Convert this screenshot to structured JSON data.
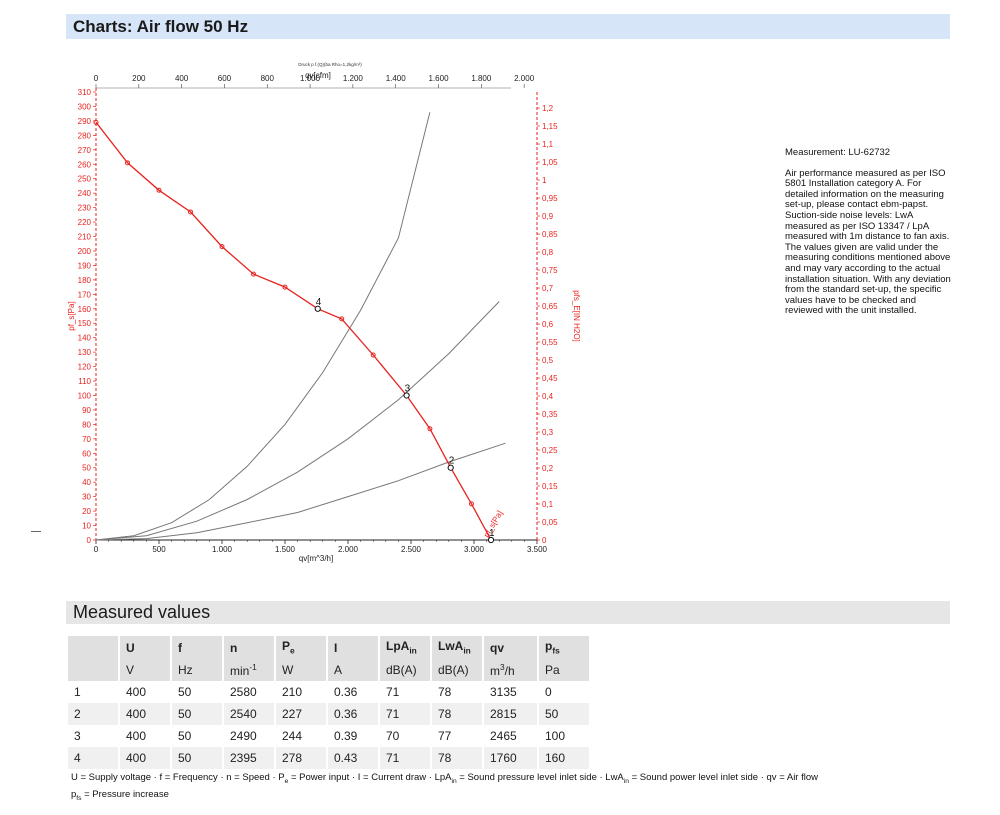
{
  "header": {
    "title": "Charts: Air flow 50 Hz"
  },
  "chart_data": {
    "type": "line",
    "subtitle": "Druck p f.(Q)(ba Rho=1,2kg/m³)",
    "xlabel_bottom": "qv[m^3/h]",
    "xlabel_top": "qv[cfm]",
    "ylabel_left": "pf_s[Pa]",
    "ylabel_right": "pfs_E[IN H2O]",
    "xlim": [
      0,
      3500
    ],
    "ylim": [
      0,
      310
    ],
    "x_ticks": [
      "0",
      "500",
      "1.000",
      "1.500",
      "2.000",
      "2.500",
      "3.000",
      "3.500"
    ],
    "x_top_ticks": [
      "0",
      "200",
      "400",
      "600",
      "800",
      "1.000",
      "1.200",
      "1.400",
      "1.600",
      "1.800",
      "2.000"
    ],
    "y_ticks": [
      "0",
      "10",
      "20",
      "30",
      "40",
      "50",
      "60",
      "70",
      "80",
      "90",
      "100",
      "110",
      "120",
      "130",
      "140",
      "150",
      "160",
      "170",
      "180",
      "190",
      "200",
      "210",
      "220",
      "230",
      "240",
      "250",
      "260",
      "270",
      "280",
      "290",
      "300",
      "310"
    ],
    "y_right_ticks": [
      "0",
      "0,05",
      "0,1",
      "0,15",
      "0,2",
      "0,25",
      "0,3",
      "0,35",
      "0,4",
      "0,45",
      "0,5",
      "0,55",
      "0,6",
      "0,65",
      "0,7",
      "0,75",
      "0,8",
      "0,85",
      "0,9",
      "0,95",
      "1",
      "1,05",
      "1,1",
      "1,15",
      "1,2"
    ],
    "series": [
      {
        "name": "pf_s[Pa]",
        "color": "#e8231f",
        "x": [
          0,
          250,
          500,
          750,
          1000,
          1250,
          1500,
          1760,
          1950,
          2200,
          2465,
          2650,
          2815,
          2980,
          3135
        ],
        "y": [
          289,
          261,
          242,
          227,
          203,
          184,
          175,
          160,
          153,
          128,
          100,
          77,
          50,
          25,
          0
        ]
      }
    ],
    "system_curves": [
      {
        "x": [
          0,
          400,
          800,
          1200,
          1600,
          2000,
          2400,
          2800,
          3200
        ],
        "y": [
          0,
          3,
          13,
          28,
          47,
          70,
          97,
          129,
          165
        ]
      },
      {
        "x": [
          0,
          400,
          800,
          1200,
          1600,
          2000,
          2400,
          2800,
          3250
        ],
        "y": [
          0,
          1,
          5,
          12,
          19,
          30,
          41,
          54,
          67
        ]
      },
      {
        "x": [
          0,
          300,
          600,
          900,
          1200,
          1500,
          1800,
          2100,
          2400,
          2650
        ],
        "y": [
          0,
          3,
          12,
          28,
          51,
          80,
          116,
          159,
          209,
          296
        ]
      }
    ],
    "operating_points": [
      {
        "label": "1",
        "x": 3135,
        "y": 0
      },
      {
        "label": "2",
        "x": 2815,
        "y": 50
      },
      {
        "label": "3",
        "x": 2465,
        "y": 100
      },
      {
        "label": "4",
        "x": 1760,
        "y": 160
      }
    ],
    "grid": false
  },
  "notes": {
    "measurement": "Measurement: LU-62732",
    "description": "Air performance measured as per ISO 5801 Installation category A. For detailed information on the measuring set-up, please contact ebm-papst. Suction-side noise levels: LwA measured as per ISO 13347 / LpA measured with 1m distance to fan axis. The values given are valid under the measuring conditions mentioned above and may vary according to the actual installation situation. With any deviation from the standard set-up, the specific values have to be checked and reviewed with the unit installed."
  },
  "measured": {
    "title": "Measured values",
    "headers": [
      "",
      "U",
      "f",
      "n",
      "Pe",
      "I",
      "LpAin",
      "LwAin",
      "qv",
      "pfs"
    ],
    "units": [
      "",
      "V",
      "Hz",
      "min-1",
      "W",
      "A",
      "dB(A)",
      "dB(A)",
      "m3/h",
      "Pa"
    ],
    "rows": [
      [
        "1",
        "400",
        "50",
        "2580",
        "210",
        "0.36",
        "71",
        "78",
        "3135",
        "0"
      ],
      [
        "2",
        "400",
        "50",
        "2540",
        "227",
        "0.36",
        "71",
        "78",
        "2815",
        "50"
      ],
      [
        "3",
        "400",
        "50",
        "2490",
        "244",
        "0.39",
        "70",
        "77",
        "2465",
        "100"
      ],
      [
        "4",
        "400",
        "50",
        "2395",
        "278",
        "0.43",
        "71",
        "78",
        "1760",
        "160"
      ]
    ]
  },
  "legend": {
    "line1": "U = Supply voltage · f = Frequency · n = Speed · Pe = Power input · I = Current draw · LpAin = Sound pressure level inlet side · LwAin = Sound power level inlet side · qv = Air flow",
    "line2": "pfs = Pressure increase"
  }
}
